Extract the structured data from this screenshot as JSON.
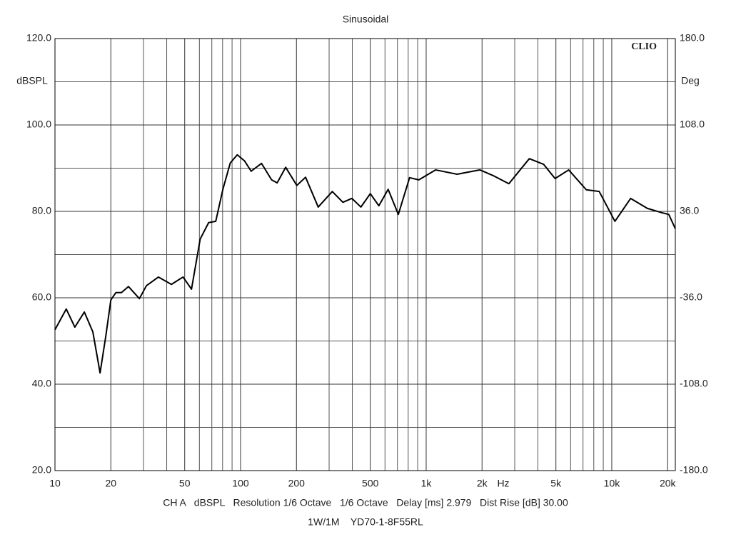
{
  "chart_data": {
    "type": "line",
    "title": "Sinusoidal",
    "ylabel": "dBSPL",
    "y2label": "Deg",
    "xlabel": "Hz",
    "watermark": "CLIO",
    "footer": [
      "CH A   dBSPL   Resolution 1/6 Octave   1/6 Octave   Delay [ms] 2.979   Dist Rise [dB] 30.00",
      "1W/1M    YD70-1-8F55RL"
    ],
    "xscale": "log",
    "grid": true,
    "xlim": [
      10,
      22000
    ],
    "xticks": [
      10,
      20,
      50,
      100,
      200,
      500,
      {
        "value": 1000,
        "label": "1k"
      },
      {
        "value": 2000,
        "label": "2k"
      },
      {
        "value": 5000,
        "label": "5k"
      },
      {
        "value": 10000,
        "label": "10k"
      },
      {
        "value": 20000,
        "label": "20k"
      }
    ],
    "xminor": [
      30,
      40,
      60,
      70,
      80,
      90,
      300,
      400,
      600,
      700,
      800,
      900,
      3000,
      4000,
      6000,
      7000,
      8000,
      9000
    ],
    "ylim": [
      20,
      120
    ],
    "yticks": [
      {
        "value": 20,
        "label": "20.0"
      },
      {
        "value": 40,
        "label": "40.0"
      },
      {
        "value": 60,
        "label": "60.0"
      },
      {
        "value": 80,
        "label": "80.0"
      },
      {
        "value": 100,
        "label": "100.0"
      },
      {
        "value": 120,
        "label": "120.0"
      }
    ],
    "yminor": [
      30,
      50,
      70,
      90,
      110
    ],
    "y2lim": [
      -180,
      180
    ],
    "y2ticks": [
      {
        "value": -180,
        "label": "-180.0"
      },
      {
        "value": -108,
        "label": "-108.0"
      },
      {
        "value": -36,
        "label": "-36.0"
      },
      {
        "value": 36,
        "label": "36.0"
      },
      {
        "value": 108,
        "label": "108.0"
      },
      {
        "value": 180,
        "label": "180.0"
      }
    ],
    "x": [
      10,
      11.5,
      12.8,
      14.4,
      16,
      17.5,
      18.8,
      20,
      21.3,
      22.8,
      24.9,
      28.5,
      31.1,
      36.1,
      42.4,
      49,
      54.4,
      60.6,
      67.3,
      73.5,
      80.3,
      88,
      96,
      105,
      114,
      129.7,
      147,
      157.5,
      175,
      201,
      224,
      262,
      312,
      356,
      398,
      445,
      500,
      556,
      624,
      708,
      814,
      913,
      1125,
      1467,
      1950,
      2290,
      2790,
      3595,
      4290,
      4950,
      5860,
      7290,
      8560,
      10400,
      12640,
      15530,
      18570,
      20280,
      22000
    ],
    "series": [
      {
        "color": "#000000",
        "values": [
          52.6,
          57.4,
          53.2,
          56.7,
          52.1,
          42.6,
          51.2,
          59.5,
          61.2,
          61.2,
          62.6,
          59.8,
          62.8,
          64.8,
          63.1,
          64.8,
          62.0,
          73.6,
          77.4,
          77.7,
          85.1,
          91.2,
          93.1,
          91.7,
          89.3,
          91.1,
          87.3,
          86.6,
          90.2,
          86.0,
          87.9,
          81.0,
          84.6,
          82.1,
          83.0,
          81.0,
          84.1,
          81.3,
          85.1,
          79.3,
          87.8,
          87.3,
          89.6,
          88.6,
          89.6,
          88.3,
          86.4,
          92.2,
          90.9,
          87.6,
          89.6,
          85.0,
          84.6,
          77.7,
          83.0,
          80.7,
          79.7,
          79.3,
          76.0
        ]
      }
    ]
  }
}
